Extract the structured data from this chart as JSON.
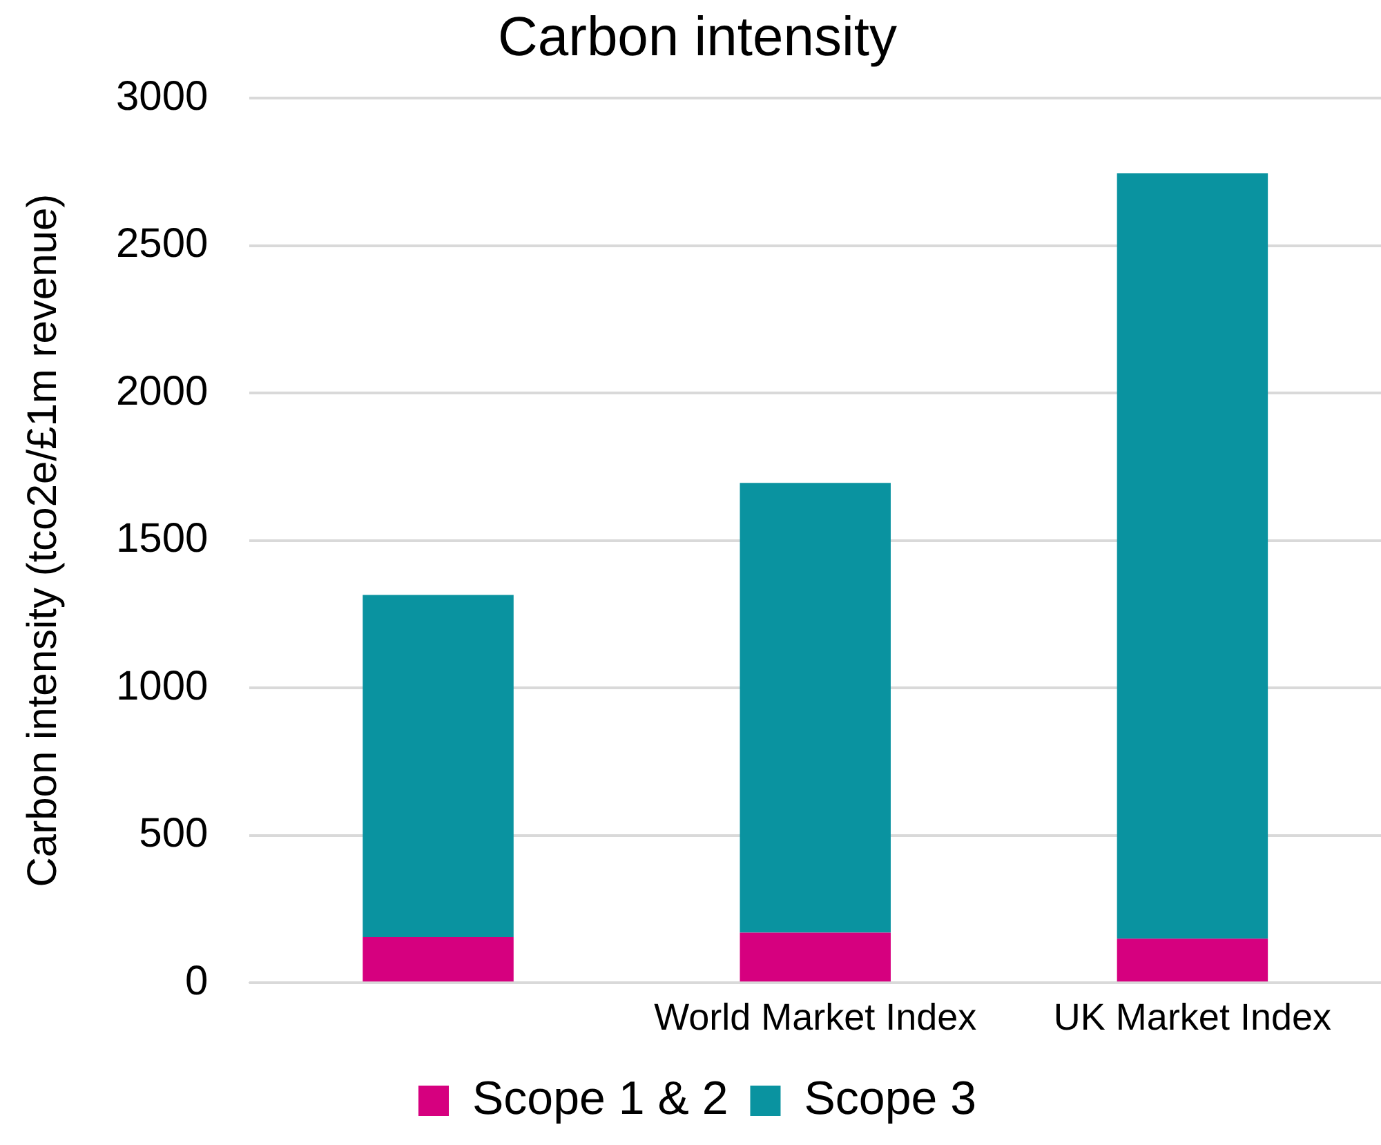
{
  "chart_data": {
    "type": "bar",
    "title": "Carbon intensity",
    "ylabel": "Carbon intensity (tco2e/£1m revenue)",
    "categories": [
      null,
      "World Market Index",
      "UK Market Index"
    ],
    "stacked": true,
    "series": [
      {
        "name": "Scope 1 & 2",
        "color": "#d6007f",
        "values": [
          155,
          170,
          150
        ]
      },
      {
        "name": "Scope 3",
        "color": "#0a93a0",
        "values": [
          1160,
          1525,
          2595
        ]
      }
    ],
    "ylim": [
      0,
      3000
    ],
    "yticks": [
      0,
      500,
      1000,
      1500,
      2000,
      2500,
      3000
    ],
    "grid": "y",
    "legend": "bottom"
  }
}
